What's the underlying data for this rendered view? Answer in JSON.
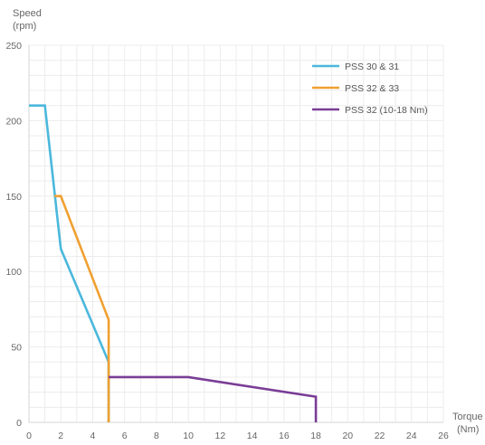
{
  "chart_data": {
    "type": "line",
    "xlabel_lines": [
      "Torque",
      "(Nm)"
    ],
    "ylabel_lines": [
      "Speed",
      "(rpm)"
    ],
    "xlim": [
      0,
      26
    ],
    "ylim": [
      0,
      250
    ],
    "x_ticks": [
      0,
      2,
      4,
      6,
      8,
      10,
      12,
      14,
      16,
      18,
      20,
      22,
      24,
      26
    ],
    "y_ticks": [
      0,
      50,
      100,
      150,
      200,
      250
    ],
    "grid": true,
    "legend_position": "top-right",
    "series": [
      {
        "name": "PSS 30 & 31",
        "color": "#4bb8dc",
        "x": [
          0,
          1,
          2,
          5,
          5
        ],
        "y": [
          210,
          210,
          115,
          40,
          0
        ]
      },
      {
        "name": "PSS 32 & 33",
        "color": "#f0a030",
        "x": [
          1.6,
          2,
          5,
          5
        ],
        "y": [
          150,
          150,
          68,
          0
        ]
      },
      {
        "name": "PSS 32 (10-18 Nm)",
        "color": "#7a3d96",
        "x": [
          5,
          10,
          18,
          18
        ],
        "y": [
          30,
          30,
          17,
          0
        ]
      }
    ]
  }
}
